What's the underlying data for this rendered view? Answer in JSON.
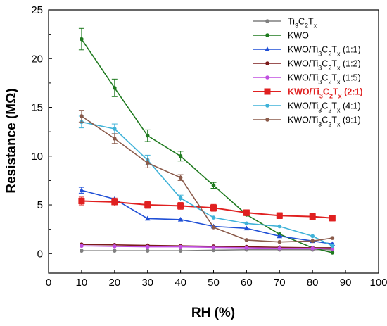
{
  "chart_data": {
    "type": "line",
    "title": "",
    "xlabel": "RH (%)",
    "ylabel": "Resistance (MΩ)",
    "xlim": [
      0,
      100
    ],
    "ylim": [
      -2,
      25
    ],
    "xticks": [
      0,
      10,
      20,
      30,
      40,
      50,
      60,
      70,
      80,
      90,
      100
    ],
    "yticks": [
      0,
      5,
      10,
      15,
      20,
      25
    ],
    "grid": false,
    "legend_position": "top-right",
    "x": [
      10,
      20,
      30,
      40,
      50,
      60,
      70,
      80,
      86
    ],
    "series": [
      {
        "name": "Ti₃C₂Tₓ",
        "name_main": "Ti",
        "name_sub1": "3",
        "name_mid": "C",
        "name_sub2": "2",
        "name_mid2": "T",
        "name_sub3": "x",
        "name_tail": "",
        "color": "#7f7f7f",
        "marker": "circle",
        "highlight": false,
        "values": [
          0.3,
          0.3,
          0.3,
          0.3,
          0.35,
          0.4,
          0.4,
          0.4,
          0.4
        ],
        "errors": [
          0,
          0,
          0,
          0,
          0,
          0,
          0,
          0,
          0
        ]
      },
      {
        "name": "KWO",
        "name_main": "KWO",
        "name_sub1": "",
        "name_mid": "",
        "name_sub2": "",
        "name_mid2": "",
        "name_sub3": "",
        "name_tail": "",
        "color": "#1f7a1f",
        "marker": "circle",
        "highlight": false,
        "values": [
          22.0,
          17.0,
          12.1,
          10.0,
          7.0,
          4.0,
          2.0,
          0.6,
          0.1
        ],
        "errors": [
          1.1,
          0.9,
          0.6,
          0.5,
          0.3,
          0,
          0,
          0,
          0
        ]
      },
      {
        "name": "KWO/Ti₃C₂Tₓ (1:1)",
        "name_main": "KWO/Ti",
        "name_sub1": "3",
        "name_mid": "C",
        "name_sub2": "2",
        "name_mid2": "T",
        "name_sub3": "x",
        "name_tail": " (1:1)",
        "color": "#1f4fd6",
        "marker": "triangle",
        "highlight": false,
        "values": [
          6.5,
          5.6,
          3.6,
          3.5,
          2.8,
          2.6,
          1.8,
          1.3,
          1.0
        ],
        "errors": [
          0.3,
          0,
          0,
          0,
          0,
          0,
          0,
          0,
          0
        ]
      },
      {
        "name": "KWO/Ti₃C₂Tₓ (1:2)",
        "name_main": "KWO/Ti",
        "name_sub1": "3",
        "name_mid": "C",
        "name_sub2": "2",
        "name_mid2": "T",
        "name_sub3": "x",
        "name_tail": " (1:2)",
        "color": "#7b1a1a",
        "marker": "circle",
        "highlight": false,
        "values": [
          0.95,
          0.9,
          0.85,
          0.8,
          0.75,
          0.7,
          0.65,
          0.6,
          0.6
        ],
        "errors": [
          0,
          0,
          0,
          0,
          0,
          0,
          0,
          0,
          0
        ]
      },
      {
        "name": "KWO/Ti₃C₂Tₓ (1:5)",
        "name_main": "KWO/Ti",
        "name_sub1": "3",
        "name_mid": "C",
        "name_sub2": "2",
        "name_mid2": "T",
        "name_sub3": "x",
        "name_tail": " (1:5)",
        "color": "#c04fe0",
        "marker": "circle",
        "highlight": false,
        "values": [
          0.8,
          0.75,
          0.7,
          0.7,
          0.65,
          0.6,
          0.55,
          0.55,
          0.5
        ],
        "errors": [
          0,
          0,
          0,
          0,
          0,
          0,
          0,
          0,
          0
        ]
      },
      {
        "name": "KWO/Ti₃C₂Tₓ (2:1)",
        "name_main": "KWO/Ti",
        "name_sub1": "3",
        "name_mid": "C",
        "name_sub2": "2",
        "name_mid2": "T",
        "name_sub3": "x",
        "name_tail": " (2:1)",
        "color": "#e02020",
        "marker": "square",
        "highlight": true,
        "values": [
          5.4,
          5.3,
          5.0,
          4.9,
          4.7,
          4.2,
          3.9,
          3.8,
          3.65
        ],
        "errors": [
          0.4,
          0.4,
          0.35,
          0.35,
          0.35,
          0.3,
          0.3,
          0.3,
          0.3
        ]
      },
      {
        "name": "KWO/Ti₃C₂Tₓ (4:1)",
        "name_main": "KWO/Ti",
        "name_sub1": "3",
        "name_mid": "C",
        "name_sub2": "2",
        "name_mid2": "T",
        "name_sub3": "x",
        "name_tail": " (4:1)",
        "color": "#3fb2d8",
        "marker": "circle",
        "highlight": false,
        "values": [
          13.5,
          12.8,
          9.6,
          5.7,
          3.7,
          3.1,
          2.8,
          1.8,
          0.8
        ],
        "errors": [
          0.6,
          0.5,
          0.5,
          0.3,
          0,
          0,
          0,
          0,
          0
        ]
      },
      {
        "name": "KWO/Ti₃C₂Tₓ (9:1)",
        "name_main": "KWO/Ti",
        "name_sub1": "3",
        "name_mid": "C",
        "name_sub2": "2",
        "name_mid2": "T",
        "name_sub3": "x",
        "name_tail": " (9:1)",
        "color": "#8a5a4a",
        "marker": "circle",
        "highlight": false,
        "values": [
          14.1,
          11.8,
          9.3,
          7.8,
          2.7,
          1.4,
          1.2,
          1.3,
          1.6
        ],
        "errors": [
          0.6,
          0.5,
          0.5,
          0.3,
          0,
          0,
          0,
          0,
          0
        ]
      }
    ]
  }
}
